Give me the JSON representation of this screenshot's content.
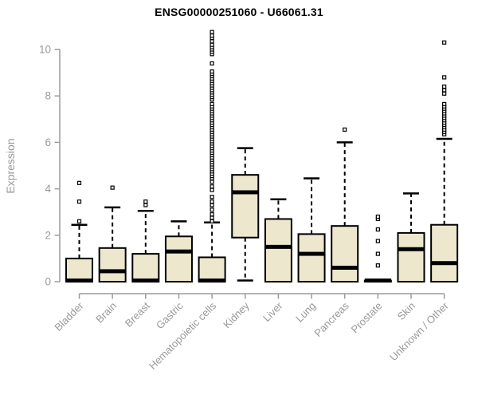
{
  "chart_data": {
    "type": "boxplot",
    "title": "ENSG00000251060 - U66061.31",
    "ylabel": "Expression",
    "xlabel": "",
    "ylim": [
      0,
      10.8
    ],
    "yticks": [
      0,
      2,
      4,
      6,
      8,
      10
    ],
    "grid": false,
    "legend": "none",
    "categories": [
      "Bladder",
      "Brain",
      "Breast",
      "Gastric",
      "Hematopoietic cells",
      "Kidney",
      "Liver",
      "Lung",
      "Pancreas",
      "Prostate",
      "Skin",
      "Unknown / Other"
    ],
    "boxes": [
      {
        "category": "Bladder",
        "low": 0,
        "q1": 0,
        "median": 0.05,
        "q3": 1.0,
        "high": 2.45,
        "outliers": [
          2.6,
          3.45,
          4.25
        ]
      },
      {
        "category": "Brain",
        "low": 0,
        "q1": 0,
        "median": 0.45,
        "q3": 1.45,
        "high": 3.2,
        "outliers": [
          4.05
        ]
      },
      {
        "category": "Breast",
        "low": 0,
        "q1": 0,
        "median": 0.05,
        "q3": 1.2,
        "high": 3.05,
        "outliers": [
          3.3,
          3.45
        ]
      },
      {
        "category": "Gastric",
        "low": 0,
        "q1": 0,
        "median": 1.3,
        "q3": 1.95,
        "high": 2.6,
        "outliers": []
      },
      {
        "category": "Hematopoietic cells",
        "low": 0,
        "q1": 0,
        "median": 0.05,
        "q3": 1.05,
        "high": 2.55,
        "outliers": [
          2.6,
          2.75,
          2.9,
          3.1,
          3.3,
          3.45,
          3.65,
          3.95,
          4.1,
          4.3,
          4.45,
          4.55,
          4.65,
          4.75,
          4.85,
          4.95,
          5.05,
          5.15,
          5.25,
          5.35,
          5.45,
          5.55,
          5.65,
          5.75,
          5.85,
          5.95,
          6.05,
          6.15,
          6.25,
          6.35,
          6.45,
          6.55,
          6.65,
          6.75,
          6.85,
          6.95,
          7.05,
          7.15,
          7.25,
          7.35,
          7.45,
          7.55,
          7.65,
          7.85,
          7.95,
          8.05,
          8.15,
          8.25,
          8.35,
          8.45,
          8.55,
          8.65,
          8.75,
          8.85,
          8.95,
          9.05,
          9.4,
          9.8,
          9.9,
          10.0,
          10.1,
          10.2,
          10.35,
          10.5,
          10.6,
          10.75
        ]
      },
      {
        "category": "Kidney",
        "low": 0.05,
        "q1": 1.9,
        "median": 3.85,
        "q3": 4.6,
        "high": 5.75,
        "outliers": []
      },
      {
        "category": "Liver",
        "low": 0,
        "q1": 0,
        "median": 1.5,
        "q3": 2.7,
        "high": 3.55,
        "outliers": []
      },
      {
        "category": "Lung",
        "low": 0,
        "q1": 0,
        "median": 1.2,
        "q3": 2.05,
        "high": 4.45,
        "outliers": []
      },
      {
        "category": "Pancreas",
        "low": 0,
        "q1": 0,
        "median": 0.6,
        "q3": 2.4,
        "high": 6.0,
        "outliers": [
          6.55
        ]
      },
      {
        "category": "Prostate",
        "low": 0,
        "q1": 0,
        "median": 0.05,
        "q3": 0.05,
        "high": 0.05,
        "outliers": [
          0.7,
          1.2,
          1.75,
          2.25,
          2.7,
          2.8
        ]
      },
      {
        "category": "Skin",
        "low": 0,
        "q1": 0,
        "median": 1.4,
        "q3": 2.1,
        "high": 3.8,
        "outliers": []
      },
      {
        "category": "Unknown / Other",
        "low": 0,
        "q1": 0,
        "median": 0.8,
        "q3": 2.45,
        "high": 6.15,
        "outliers": [
          6.35,
          6.45,
          6.55,
          6.65,
          6.75,
          6.85,
          6.95,
          7.05,
          7.15,
          7.25,
          7.35,
          7.45,
          7.55,
          7.65,
          8.1,
          8.25,
          8.4,
          8.8,
          10.3
        ]
      }
    ],
    "colors": {
      "box_fill": "#ECE7CD",
      "box_stroke": "#000000",
      "median": "#000000",
      "whisker": "#000000",
      "outlier_stroke": "#000000",
      "axis": "#9c9c9c",
      "tick_label": "#999999",
      "title": "#000000",
      "background": "#ffffff"
    }
  }
}
